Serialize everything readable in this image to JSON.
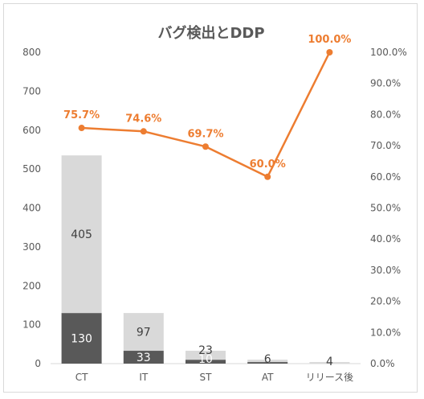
{
  "chart_data": {
    "type": "bar",
    "title": "バグ検出とDDP",
    "categories": [
      "CT",
      "IT",
      "ST",
      "AT",
      "リリース後"
    ],
    "series": [
      {
        "values": [
          130,
          33,
          10,
          4,
          0
        ],
        "color": "#595959",
        "stack": "bugs"
      },
      {
        "values": [
          405,
          97,
          23,
          6,
          4
        ],
        "color": "#d9d9d9",
        "stack": "bugs"
      }
    ],
    "bar_labels": [
      [
        "130",
        "33",
        "10",
        "4",
        ""
      ],
      [
        "405",
        "97",
        "23",
        "6",
        "4"
      ]
    ],
    "line_series": {
      "values": [
        75.7,
        74.6,
        69.7,
        60.0,
        100.0
      ],
      "labels": [
        "75.7%",
        "74.6%",
        "69.7%",
        "60.0%",
        "100.0%"
      ],
      "color": "#ed7d31"
    },
    "y_left": {
      "ylim": [
        0,
        800
      ],
      "ticks": [
        "0",
        "100",
        "200",
        "300",
        "400",
        "500",
        "600",
        "700",
        "800"
      ]
    },
    "y_right": {
      "ylim": [
        0,
        100
      ],
      "ticks": [
        "0.0%",
        "10.0%",
        "20.0%",
        "30.0%",
        "40.0%",
        "50.0%",
        "60.0%",
        "70.0%",
        "80.0%",
        "90.0%",
        "100.0%"
      ]
    },
    "grid": false,
    "legend": "none"
  }
}
